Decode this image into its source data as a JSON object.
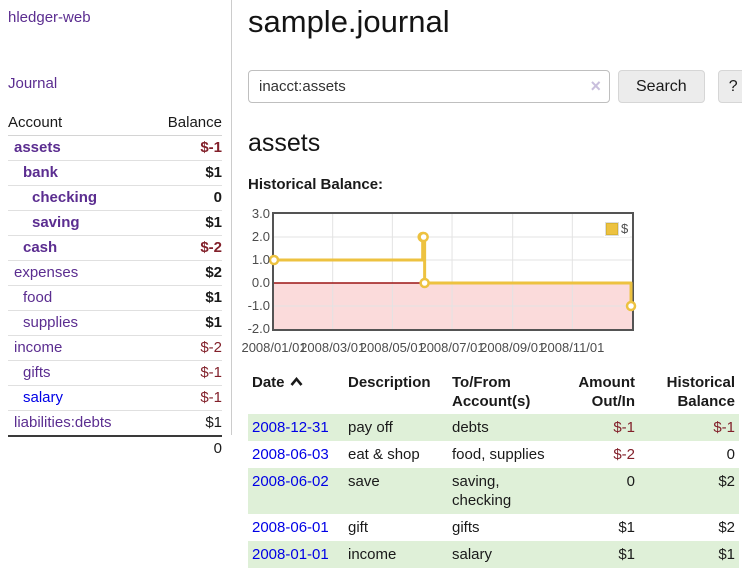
{
  "app": {
    "brand": "hledger-web"
  },
  "sidebar": {
    "nav": {
      "journal": "Journal"
    },
    "headers": {
      "account": "Account",
      "balance": "Balance"
    },
    "accounts": [
      {
        "label": "assets",
        "balance": "$-1"
      },
      {
        "label": "bank",
        "balance": "$1"
      },
      {
        "label": "checking",
        "balance": "0"
      },
      {
        "label": "saving",
        "balance": "$1"
      },
      {
        "label": "cash",
        "balance": "$-2"
      },
      {
        "label": "expenses",
        "balance": "$2"
      },
      {
        "label": "food",
        "balance": "$1"
      },
      {
        "label": "supplies",
        "balance": "$1"
      },
      {
        "label": "income",
        "balance": "$-2"
      },
      {
        "label": "gifts",
        "balance": "$-1"
      },
      {
        "label": "salary",
        "balance": "$-1"
      },
      {
        "label": "liabilities:debts",
        "balance": "$1"
      }
    ],
    "total": "0"
  },
  "main": {
    "title": "sample.journal",
    "search": {
      "value": "inacct:assets",
      "clear": "×",
      "search_button": "Search",
      "help_button": "?"
    },
    "account_heading": "assets",
    "chart_title": "Historical Balance:"
  },
  "chart_data": {
    "type": "line",
    "title": "Historical Balance of assets",
    "series": [
      {
        "name": "$",
        "step": true,
        "points": [
          [
            "2008-01-01",
            1
          ],
          [
            "2008-06-01",
            2
          ],
          [
            "2008-06-02",
            2
          ],
          [
            "2008-06-03",
            0
          ],
          [
            "2008-12-31",
            -1
          ]
        ]
      }
    ],
    "x_range": [
      "2008-01-01",
      "2009-01-01"
    ],
    "ylim": [
      -2,
      3
    ],
    "yticks": [
      "3.0",
      "2.0",
      "1.0",
      "0.0",
      "-1.0",
      "-2.0"
    ],
    "xticks": [
      "2008/01/01",
      "2008/03/01",
      "2008/05/01",
      "2008/07/01",
      "2008/09/01",
      "2008/11/01"
    ],
    "legend": {
      "label": "$",
      "position": "top-right"
    },
    "colors": {
      "line": "#EDC240",
      "negative_fill": "#fbdbdb",
      "zero_line": "#9b1515",
      "grid": "#e3e3e3",
      "border": "#545454"
    },
    "grid": true
  },
  "register": {
    "headers": {
      "date": "Date",
      "description": "Description",
      "accounts": "To/From\nAccount(s)",
      "amount": "Amount\nOut/In",
      "balance": "Historical\nBalance"
    },
    "rows": [
      {
        "date": "2008-12-31",
        "description": "pay off",
        "accounts": "debts",
        "amount": "$-1",
        "balance": "$-1"
      },
      {
        "date": "2008-06-03",
        "description": "eat & shop",
        "accounts": "food, supplies",
        "amount": "$-2",
        "balance": "0"
      },
      {
        "date": "2008-06-02",
        "description": "save",
        "accounts": "saving,\nchecking",
        "amount": "0",
        "balance": "$2"
      },
      {
        "date": "2008-06-01",
        "description": "gift",
        "accounts": "gifts",
        "amount": "$1",
        "balance": "$2"
      },
      {
        "date": "2008-01-01",
        "description": "income",
        "accounts": "salary",
        "amount": "$1",
        "balance": "$1"
      }
    ]
  }
}
